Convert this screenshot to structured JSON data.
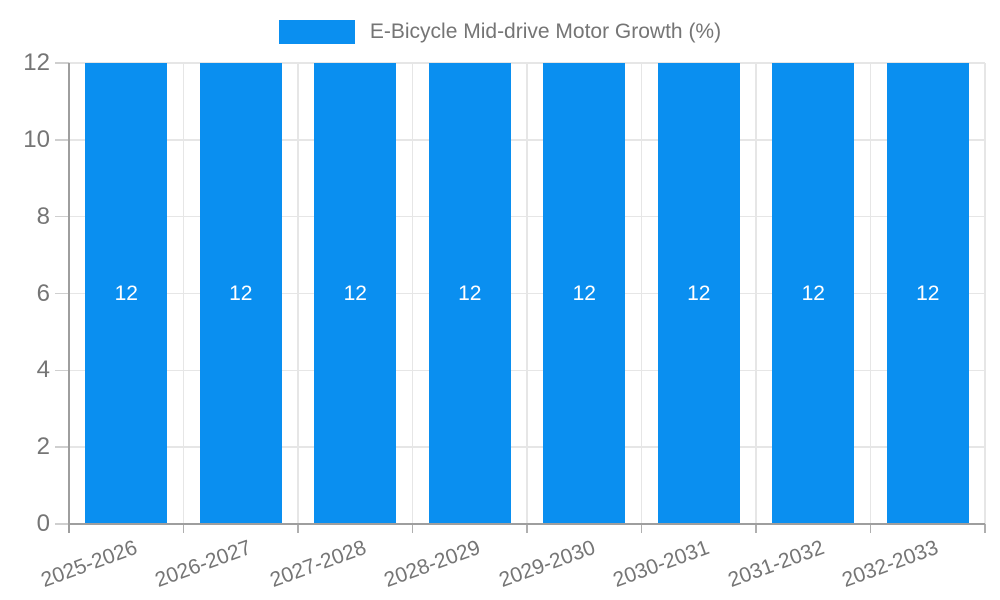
{
  "chart_data": {
    "type": "bar",
    "title": "",
    "legend": {
      "position": "top-center",
      "label": "E-Bicycle Mid-drive Motor Growth (%)"
    },
    "categories": [
      "2025-2026",
      "2026-2027",
      "2027-2028",
      "2028-2029",
      "2029-2030",
      "2030-2031",
      "2031-2032",
      "2032-2033"
    ],
    "series": [
      {
        "name": "E-Bicycle Mid-drive Motor Growth (%)",
        "values": [
          12,
          12,
          12,
          12,
          12,
          12,
          12,
          12
        ]
      }
    ],
    "data_labels": [
      "12",
      "12",
      "12",
      "12",
      "12",
      "12",
      "12",
      "12"
    ],
    "xlabel": "",
    "ylabel": "",
    "ylim": [
      0,
      12
    ],
    "yticks": [
      0,
      2,
      4,
      6,
      8,
      10,
      12
    ],
    "grid": "on",
    "x_label_rotation_deg": -20
  },
  "colors": {
    "bar": "#0A8FF0",
    "bar_label_text": "#FFFFFF",
    "axis_text": "#757575",
    "axis_line": "#9E9E9E",
    "gridline": "#E6E6E6",
    "y_tick_mark": "#CFCFCF",
    "x_tick_mark": "#AFAFAF",
    "background": "#FFFFFF"
  }
}
